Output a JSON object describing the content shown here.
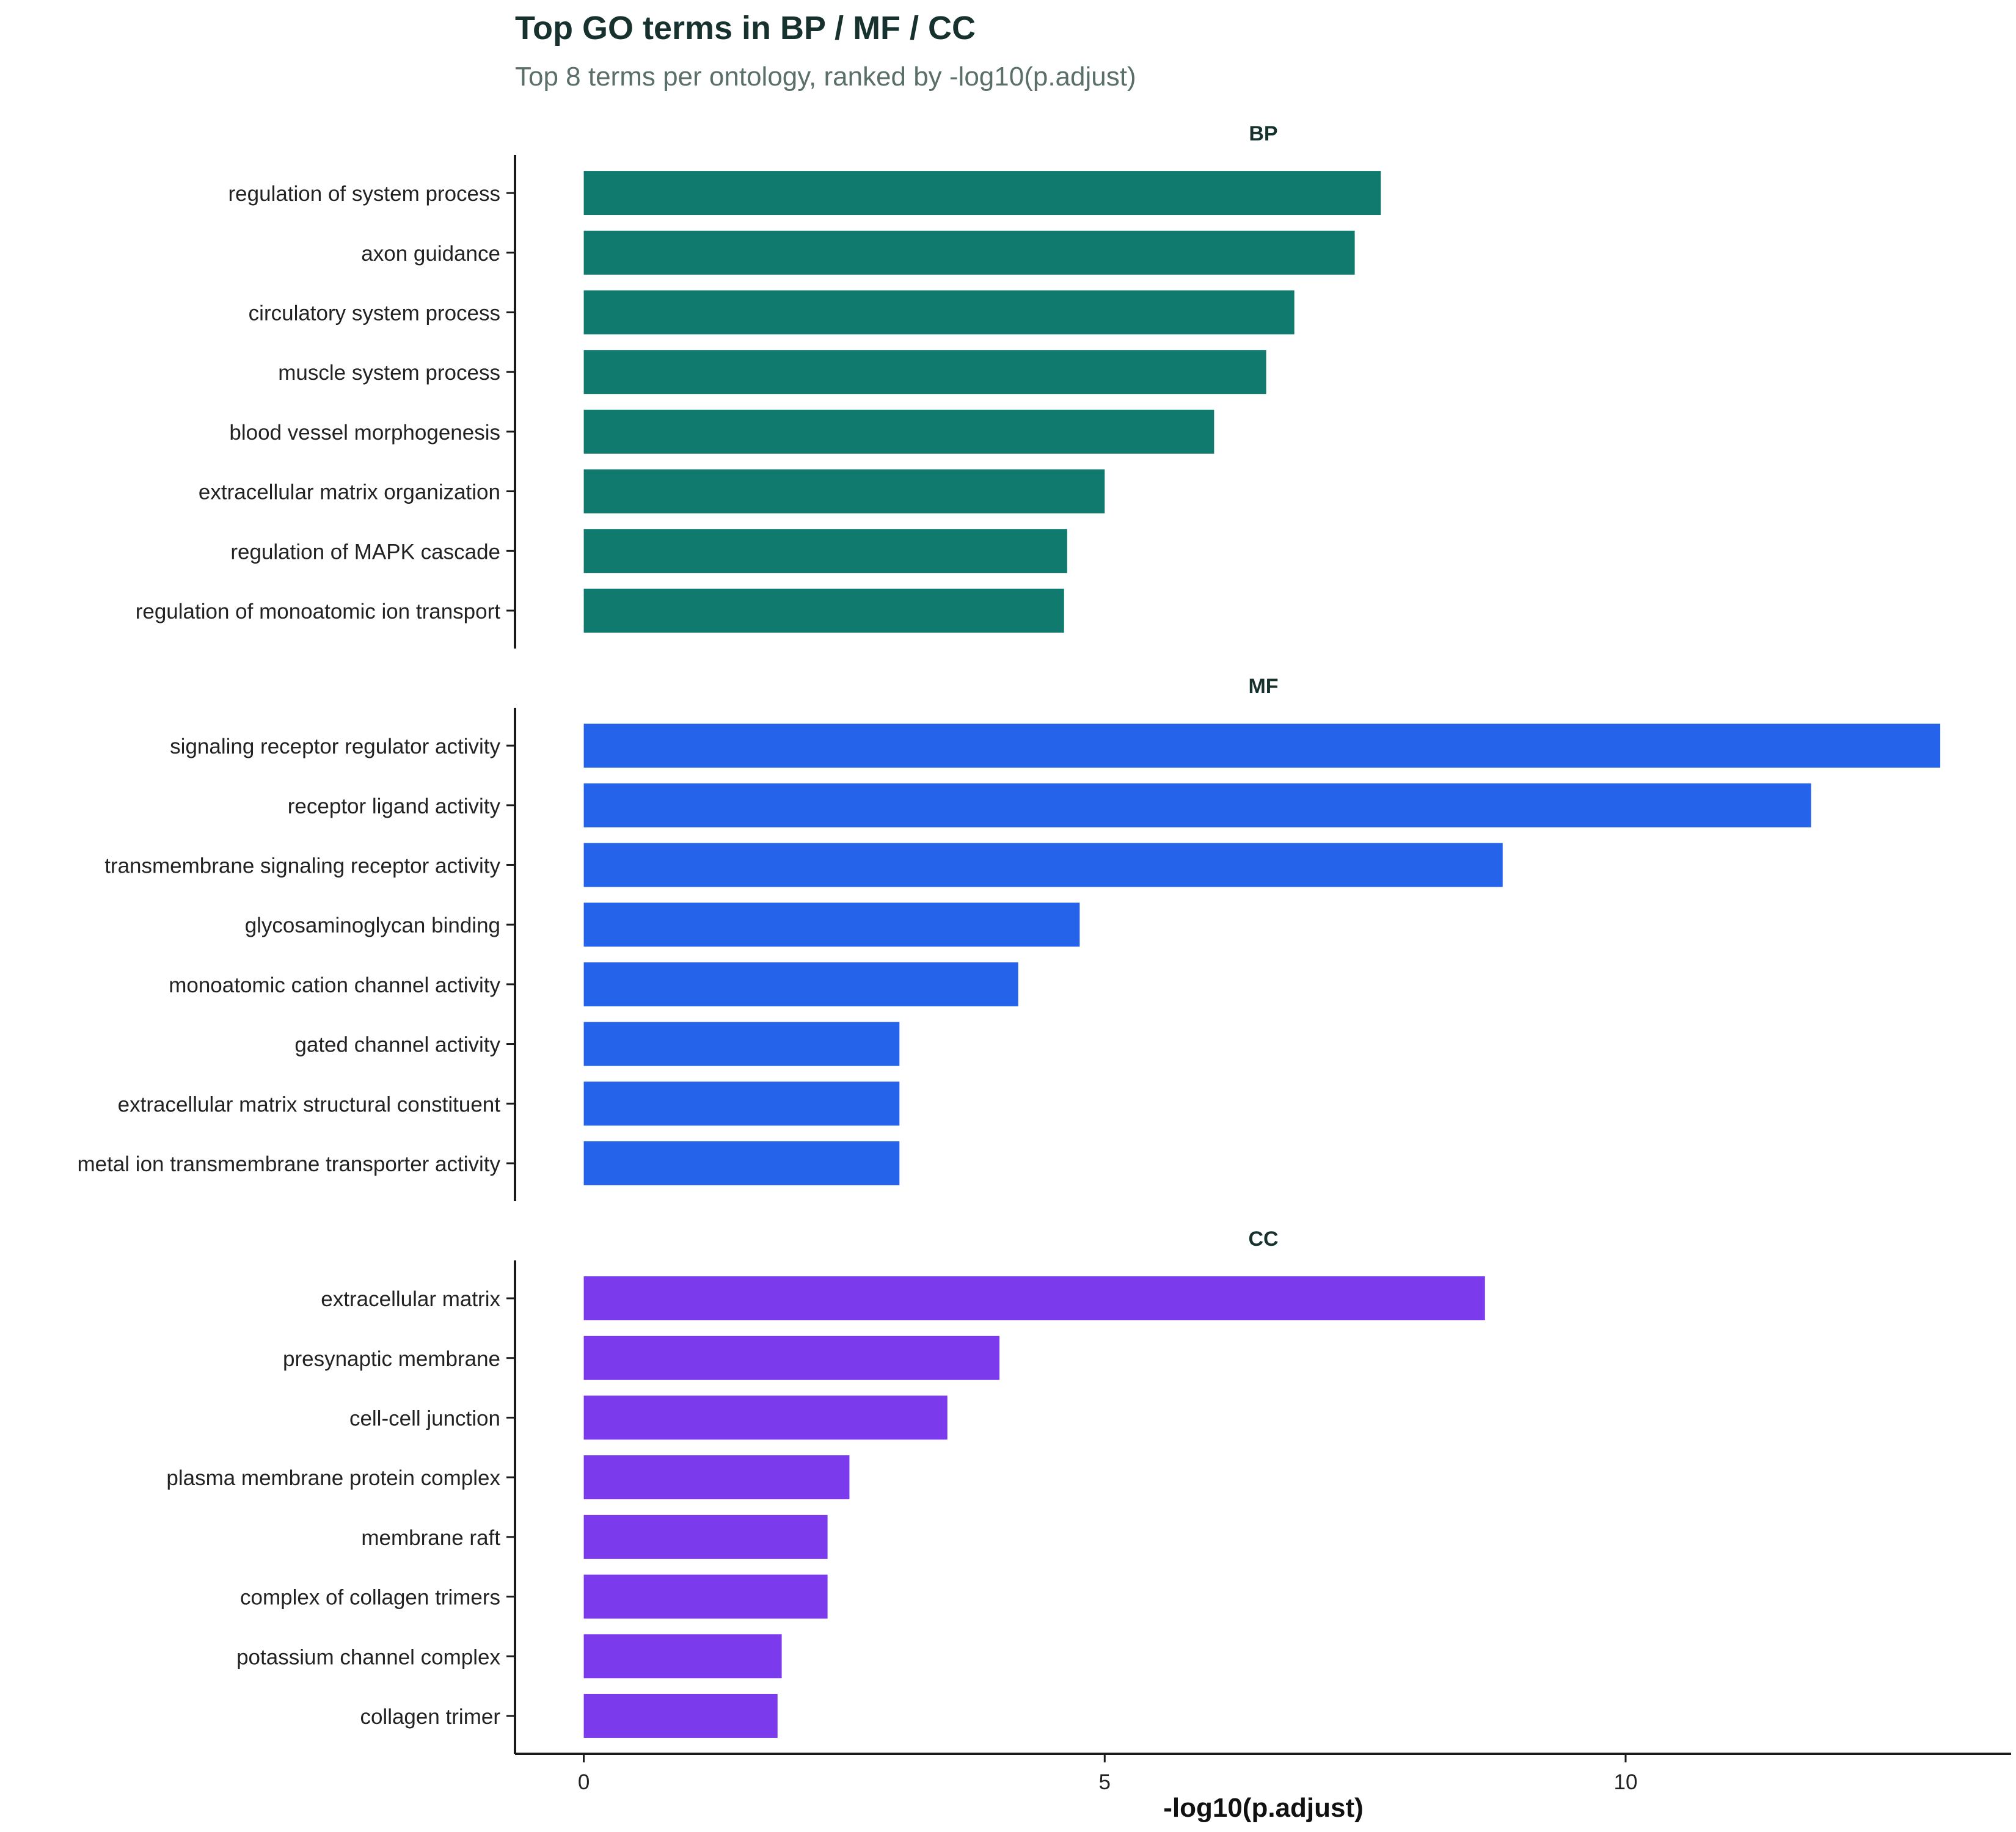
{
  "colors": {
    "title": "#17322e",
    "subtitle": "#5a6e6a",
    "axis": "#1a1a1a",
    "BP": "#117a6f",
    "MF": "#2563eb",
    "CC": "#7c3aed"
  },
  "chart_data": {
    "type": "bar",
    "orientation": "horizontal",
    "title": "Top GO terms in BP / MF / CC",
    "subtitle": "Top 8 terms per ontology, ranked by -log10(p.adjust)",
    "xlabel": "-log10(p.adjust)",
    "ylabel": "",
    "xlim": [
      -0.66,
      13.7
    ],
    "xticks": [
      0,
      5,
      10
    ],
    "grid": false,
    "panels": [
      {
        "name": "BP",
        "categories": [
          "regulation of system process",
          "axon guidance",
          "circulatory system process",
          "muscle system process",
          "blood vessel morphogenesis",
          "extracellular matrix organization",
          "regulation of MAPK cascade",
          "regulation of monoatomic ion transport"
        ],
        "values": [
          7.65,
          7.4,
          6.82,
          6.55,
          6.05,
          5.0,
          4.64,
          4.61
        ]
      },
      {
        "name": "MF",
        "categories": [
          "signaling receptor regulator activity",
          "receptor ligand activity",
          "transmembrane signaling receptor activity",
          "glycosaminoglycan binding",
          "monoatomic cation channel activity",
          "gated channel activity",
          "extracellular matrix structural constituent",
          "metal ion transmembrane transporter activity"
        ],
        "values": [
          13.02,
          11.78,
          8.82,
          4.76,
          4.17,
          3.03,
          3.03,
          3.03
        ]
      },
      {
        "name": "CC",
        "categories": [
          "extracellular matrix",
          "presynaptic membrane",
          "cell-cell junction",
          "plasma membrane protein complex",
          "membrane raft",
          "complex of collagen trimers",
          "potassium channel complex",
          "collagen trimer"
        ],
        "values": [
          8.65,
          3.99,
          3.49,
          2.55,
          2.34,
          2.34,
          1.9,
          1.86
        ]
      }
    ]
  }
}
